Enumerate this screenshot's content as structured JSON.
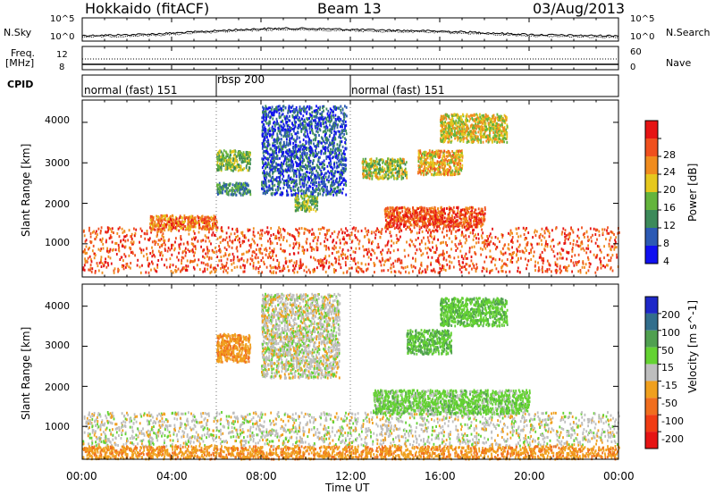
{
  "header": {
    "station": "Hokkaido (fitACF)",
    "beam": "Beam 13",
    "date": "03/Aug/2013"
  },
  "noise_panel": {
    "left_label": "N.Sky",
    "left_ticks": [
      "10^5",
      "10^0"
    ],
    "right_label": "N.Search",
    "right_ticks": [
      "10^5",
      "10^0"
    ]
  },
  "freq_panel": {
    "left_label_line1": "Freq.",
    "left_label_line2": "[MHz]",
    "left_ticks": [
      "12",
      "8"
    ],
    "right_label": "Nave",
    "right_ticks": [
      "60",
      "0"
    ]
  },
  "cpid_panel": {
    "label": "CPID",
    "segments": [
      {
        "label": "normal (fast) 151",
        "start_hour": 0,
        "end_hour": 6
      },
      {
        "label": "rbsp 200",
        "start_hour": 6,
        "end_hour": 12
      },
      {
        "label": "normal (fast) 151",
        "start_hour": 12,
        "end_hour": 24
      }
    ]
  },
  "chart_data": [
    {
      "type": "heatmap",
      "quantity": "Power",
      "ylabel": "Slant Range [km]",
      "yticks": [
        1000,
        2000,
        3000,
        4000
      ],
      "ylim": [
        180,
        4550
      ],
      "colorbar_label": "Power [dB]",
      "colorbar_ticks": [
        4,
        8,
        12,
        16,
        20,
        24,
        28
      ],
      "colorbar_colors": [
        "#1010f0",
        "#2c5ab4",
        "#3c8a5a",
        "#64b43c",
        "#e6c81e",
        "#f08c1e",
        "#f0501e",
        "#e61414"
      ],
      "echo_regions": [
        {
          "t": [
            0,
            24
          ],
          "r": [
            280,
            1400
          ],
          "level": 26
        },
        {
          "t": [
            3,
            6
          ],
          "r": [
            1350,
            1700
          ],
          "level": 24
        },
        {
          "t": [
            6,
            7.5
          ],
          "r": [
            2800,
            3300
          ],
          "level": 14
        },
        {
          "t": [
            6,
            7.5
          ],
          "r": [
            2200,
            2500
          ],
          "level": 10
        },
        {
          "t": [
            8,
            11.8
          ],
          "r": [
            2200,
            4400
          ],
          "level": 6
        },
        {
          "t": [
            9.5,
            10.5
          ],
          "r": [
            1800,
            2200
          ],
          "level": 14
        },
        {
          "t": [
            12.5,
            14.5
          ],
          "r": [
            2600,
            3100
          ],
          "level": 16
        },
        {
          "t": [
            13.5,
            18
          ],
          "r": [
            1400,
            1900
          ],
          "level": 26
        },
        {
          "t": [
            15,
            17
          ],
          "r": [
            2700,
            3300
          ],
          "level": 20
        },
        {
          "t": [
            16,
            19
          ],
          "r": [
            3500,
            4200
          ],
          "level": 18
        }
      ]
    },
    {
      "type": "heatmap",
      "quantity": "Velocity",
      "ylabel": "Slant Range [km]",
      "yticks": [
        1000,
        2000,
        3000,
        4000
      ],
      "ylim": [
        180,
        4550
      ],
      "xlabel": "Time UT",
      "xticks": [
        "00:00",
        "04:00",
        "08:00",
        "12:00",
        "16:00",
        "20:00",
        "00:00"
      ],
      "xlim_hours": [
        0,
        24
      ],
      "colorbar_label": "Velocity [m s^-1]",
      "colorbar_ticks": [
        200,
        100,
        50,
        15,
        -15,
        -50,
        -100,
        -200
      ],
      "colorbar_colors": [
        "#1e28c8",
        "#326e8c",
        "#50a050",
        "#64d232",
        "#bebebe",
        "#f0a01e",
        "#f06e1e",
        "#f03c14",
        "#e61414"
      ],
      "echo_regions": [
        {
          "t": [
            0,
            24
          ],
          "r": [
            500,
            1350
          ],
          "level": 0
        },
        {
          "t": [
            0,
            24
          ],
          "r": [
            180,
            500
          ],
          "level": -40
        },
        {
          "t": [
            6,
            7.5
          ],
          "r": [
            2600,
            3300
          ],
          "level": -40
        },
        {
          "t": [
            14.5,
            16.5
          ],
          "r": [
            2800,
            3400
          ],
          "level": 50
        },
        {
          "t": [
            13,
            20
          ],
          "r": [
            1300,
            1900
          ],
          "level": 30
        },
        {
          "t": [
            16,
            19
          ],
          "r": [
            3500,
            4200
          ],
          "level": 40
        },
        {
          "t": [
            8,
            11.5
          ],
          "r": [
            2200,
            4300
          ],
          "level": 0
        }
      ]
    }
  ],
  "colors": {
    "frame": "#000000",
    "background": "#ffffff"
  }
}
